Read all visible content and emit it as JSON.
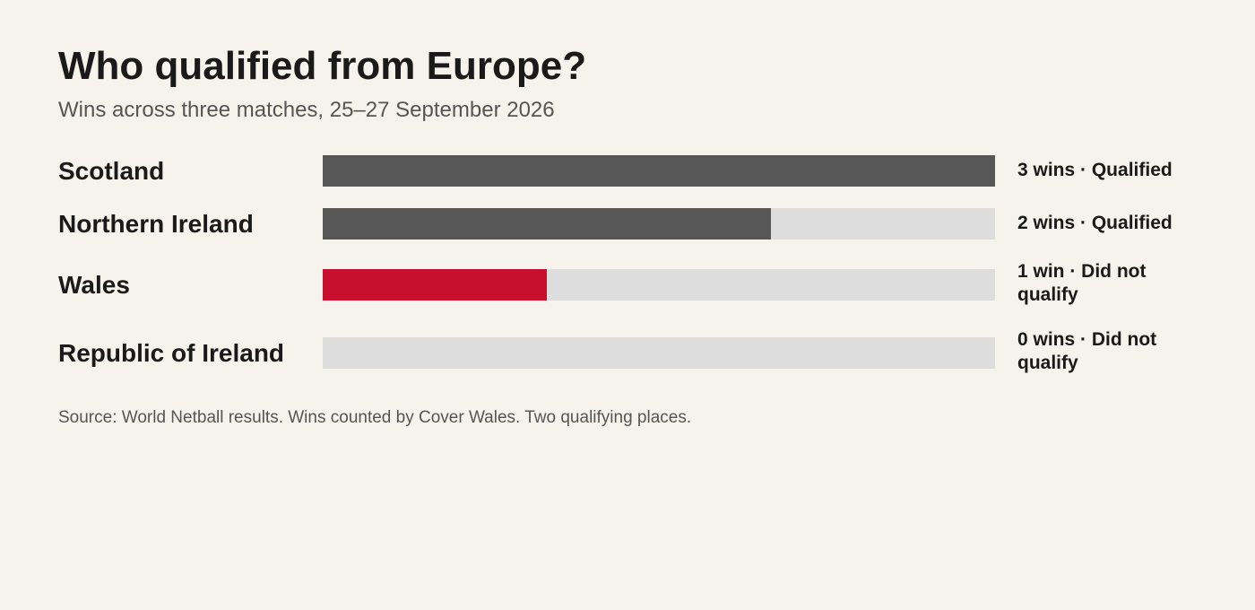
{
  "chart_data": {
    "type": "bar",
    "orientation": "horizontal",
    "title": "Who qualified from Europe?",
    "subtitle": "Wins across three matches, 25–27 September 2026",
    "source": "Source: World Netball results. Wins counted by Cover Wales. Two qualifying places.",
    "xlim": [
      0,
      3
    ],
    "grid": false,
    "categories": [
      "Scotland",
      "Northern Ireland",
      "Wales",
      "Republic of Ireland"
    ],
    "values": [
      3,
      2,
      1,
      0
    ],
    "value_labels": [
      "3 wins · Qualified",
      "2 wins · Qualified",
      "1 win · Did not qualify",
      "0 wins · Did not qualify"
    ],
    "bar_colors": [
      "#575757",
      "#575757",
      "#c8102e",
      "#575757"
    ],
    "track_color": "#dddddd"
  }
}
